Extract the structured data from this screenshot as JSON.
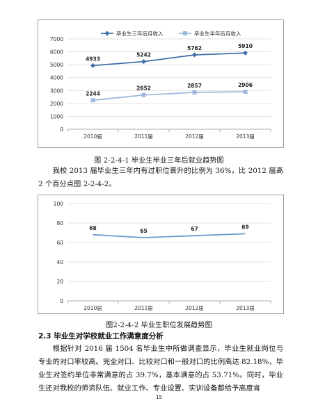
{
  "chart_data": [
    {
      "type": "line",
      "categories": [
        "2010届",
        "2011届",
        "2012届",
        "2013届"
      ],
      "series": [
        {
          "name": "毕业生三年后月收入",
          "values": [
            4933,
            5242,
            5762,
            5910
          ],
          "color": "#3f6ea6",
          "marker": "diamond"
        },
        {
          "name": "毕业生半年后月收入",
          "values": [
            2244,
            2652,
            2857,
            2906
          ],
          "color": "#9db8dc",
          "marker": "square"
        }
      ],
      "ylim": [
        0,
        7000
      ],
      "yticks": [
        0,
        1000,
        2000,
        3000,
        4000,
        5000,
        6000,
        7000
      ],
      "grid": true,
      "legend": "top"
    },
    {
      "type": "line",
      "categories": [
        "2010届",
        "2011届",
        "2012届",
        "2013届"
      ],
      "series": [
        {
          "values": [
            68,
            65,
            67,
            69
          ],
          "color": "#6a9ccd",
          "marker": "none"
        }
      ],
      "ylim": [
        0,
        100
      ],
      "yticks": [
        0,
        20,
        40,
        60,
        80,
        100
      ],
      "grid": true
    }
  ],
  "captions": {
    "fig1": "图 2-2-4-1  毕业生毕业三年后就业趋势图",
    "fig2": "图2-2-4-2  毕业生职位发展趋势图"
  },
  "paragraph1": "我校 2013 届毕业生三年内有过职位晋升的比例为 36%，比 2012 届高 2 个百分点图 2-2-4-2。",
  "heading": "2.3 毕业生对学校就业工作满意度分析",
  "paragraph2": "根据针对 2016 届 1504 名毕业生中所做调查显示，毕业生就业岗位与专业的对口率较高。完全对口、比较对口和一般对口的比例高达 82.18%，毕业生对签约单位非常满意的占 39.7%，基本满意的占 53.71%。同时，毕业生还对我校的师资队伍、就业工作、专业设置、实训设备都给予高度肯",
  "page_number": "15"
}
